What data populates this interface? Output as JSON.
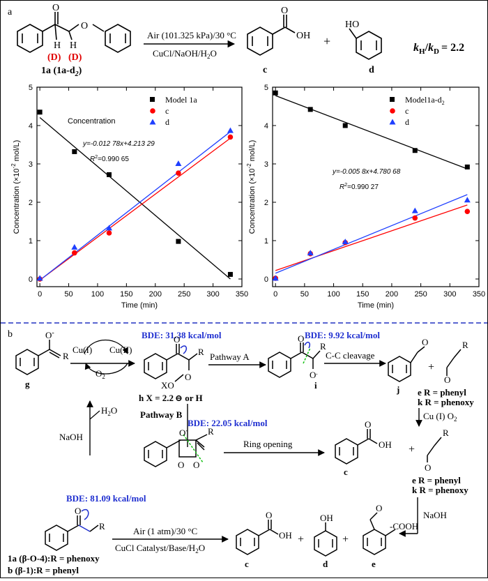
{
  "panel_a": {
    "label": "a",
    "reaction": {
      "reactant_label": "1a (1a-d",
      "reactant_sub": "2",
      "reactant_close": ")",
      "D1": "(D)",
      "D2": "(D)",
      "H1": "H",
      "H2": "H",
      "O_ketone": "O",
      "O_ether": "O",
      "arrow_top": "Air (101.325 kPa)/30 °C",
      "arrow_bottom": "CuCl/NaOH/H",
      "arrow_bottom_sub": "2",
      "arrow_bottom_end": "O",
      "product_c": "c",
      "product_d": "d",
      "c_O": "O",
      "c_OH": "OH",
      "d_HO": "HO",
      "plus": "+",
      "kie_k": "k",
      "kie_H": "H",
      "kie_slash": "/",
      "kie_D": "D",
      "kie_value": "= 2.2"
    }
  },
  "chart_data": [
    {
      "type": "scatter",
      "xlabel": "Time (min)",
      "ylabel": "Concentration (×10",
      "ylabel_exp": "-2",
      "ylabel_unit": " mol/L)",
      "xlim": [
        -5,
        350
      ],
      "ylim": [
        -0.2,
        5
      ],
      "xticks": [
        "0",
        "50",
        "100",
        "150",
        "200",
        "250",
        "300",
        "350"
      ],
      "yticks": [
        "0",
        "1",
        "2",
        "3",
        "4",
        "5"
      ],
      "annotation_title": "Concentration",
      "equation": "y=-0.012 78x+4.213 29",
      "r2": "R",
      "r2_exp": "2",
      "r2_value": "=0.990 65",
      "legend": [
        "Model 1a",
        "c",
        "d"
      ],
      "series": [
        {
          "name": "Model 1a",
          "color": "#000000",
          "marker": "square",
          "x": [
            0,
            60,
            120,
            240,
            330
          ],
          "y": [
            4.35,
            3.32,
            2.72,
            0.98,
            0.12
          ]
        },
        {
          "name": "c",
          "color": "#ff0000",
          "marker": "circle",
          "x": [
            0,
            60,
            120,
            240,
            330
          ],
          "y": [
            0.0,
            0.68,
            1.2,
            2.76,
            3.7
          ]
        },
        {
          "name": "d",
          "color": "#1f3fff",
          "marker": "triangle",
          "x": [
            0,
            60,
            120,
            240,
            330
          ],
          "y": [
            0.02,
            0.83,
            1.33,
            3.01,
            3.87
          ]
        }
      ],
      "fits": [
        {
          "color": "#000000",
          "x": [
            0,
            330
          ],
          "y": [
            4.21,
            0.0
          ]
        },
        {
          "color": "#ff0000",
          "x": [
            0,
            330
          ],
          "y": [
            -0.03,
            3.67
          ]
        },
        {
          "color": "#1f3fff",
          "x": [
            0,
            330
          ],
          "y": [
            -0.03,
            3.84
          ]
        }
      ]
    },
    {
      "type": "scatter",
      "xlabel": "Time (min)",
      "ylabel": "Concentration (×10",
      "ylabel_exp": "-2",
      "ylabel_unit": " mol/L)",
      "xlim": [
        -5,
        350
      ],
      "ylim": [
        -0.2,
        5
      ],
      "xticks": [
        "0",
        "50",
        "100",
        "150",
        "200",
        "250",
        "300",
        "350"
      ],
      "yticks": [
        "0",
        "1",
        "2",
        "3",
        "4",
        "5"
      ],
      "equation": "y=-0.005 8x+4.780 68",
      "r2": "R",
      "r2_exp": "2",
      "r2_value": "=0.990 27",
      "legend": [
        "Model1a-d",
        "c",
        "d"
      ],
      "legend_sub": "2",
      "series": [
        {
          "name": "Model1a-d2",
          "color": "#000000",
          "marker": "square",
          "x": [
            0,
            60,
            120,
            240,
            330
          ],
          "y": [
            4.85,
            4.42,
            4.0,
            3.35,
            2.92
          ]
        },
        {
          "name": "c",
          "color": "#ff0000",
          "marker": "circle",
          "x": [
            0,
            60,
            120,
            240,
            330
          ],
          "y": [
            0.02,
            0.66,
            0.95,
            1.59,
            1.76
          ]
        },
        {
          "name": "d",
          "color": "#1f3fff",
          "marker": "triangle",
          "x": [
            0,
            60,
            120,
            240,
            330
          ],
          "y": [
            0.02,
            0.68,
            0.97,
            1.78,
            2.06
          ]
        }
      ],
      "fits": [
        {
          "color": "#000000",
          "x": [
            0,
            330
          ],
          "y": [
            4.78,
            2.87
          ]
        },
        {
          "color": "#ff0000",
          "x": [
            0,
            330
          ],
          "y": [
            0.22,
            1.93
          ]
        },
        {
          "color": "#1f3fff",
          "x": [
            0,
            330
          ],
          "y": [
            0.15,
            2.2
          ]
        }
      ]
    }
  ],
  "panel_b": {
    "label": "b",
    "g": "g",
    "g_O": "O",
    "g_minus": "-",
    "g_R": "R",
    "cu1": "Cu(I)",
    "cu2": "Cu(II)",
    "o2": "O",
    "o2_sub": "2",
    "bde_h": "BDE: 31.38 kcal/mol",
    "h_O": "O",
    "h_R": "R",
    "h_OO": "O",
    "h_XO": "XO",
    "h_label": "h X = 2.2",
    "h_label_end": " or H",
    "pathway_a": "Pathway A",
    "bde_i": "BDE:  9.92 kcal/mol",
    "i_O": "O",
    "i_R": "R",
    "i_Om": "O",
    "i_label": "i",
    "cc_cleavage": "C-C cleavage",
    "j_O": "O",
    "j_label": "j",
    "ek_R": "R",
    "ek_O": "O",
    "e_R_phenyl": "e R = phenyl",
    "k_R_phenoxy": "k R = phenoxy",
    "cu_o2": "Cu (I) O",
    "cu_o2_sub": "2",
    "pathway_b": "Pathway B",
    "h2o": "H",
    "h2o_sub": "2",
    "h2o_end": "O",
    "naoh_left": "NaOH",
    "bde_diox": "BDE: 22.05 kcal/mol",
    "diox_O1": "O",
    "diox_O2": "O",
    "diox_O3": "O",
    "diox_R": "R",
    "ring_opening": "Ring opening",
    "c_O": "O",
    "c_OH": "OH",
    "c_label": "c",
    "plus": "+",
    "ek2_R": "R",
    "ek2_O": "O",
    "e2_R_phenyl": "e R = phenyl",
    "k2_R_phenoxy": "k R = phenoxy",
    "naoh_right": "NaOH",
    "bde_1a": "BDE: 81.09 kcal/mol",
    "s_O": "O",
    "s_R": "R",
    "s_label1": "1a (β-O-4):R = phenoxy",
    "s_label2": "b (β-1):R = phenyl",
    "bot_arrow_top": "Air (1 atm)/30 °C",
    "bot_arrow_bottom": "CuCl Catalyst/Base/H",
    "bot_arrow_bottom_sub": "2",
    "bot_arrow_bottom_end": "O",
    "bc_O": "O",
    "bc_OH": "OH",
    "bc_label": "c",
    "bd_OH": "OH",
    "bd_label": "d",
    "be_O": "O",
    "be_COOH": "-COOH",
    "be_label": "e"
  }
}
